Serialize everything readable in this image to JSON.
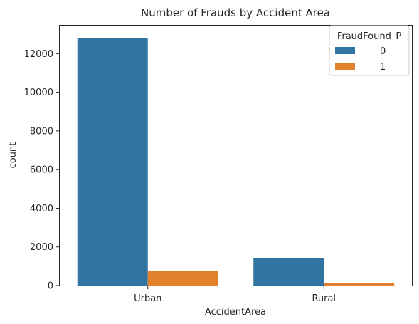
{
  "chart_data": {
    "type": "bar",
    "title": "Number of Frauds by Accident Area",
    "xlabel": "AccidentArea",
    "ylabel": "count",
    "categories": [
      "Urban",
      "Rural"
    ],
    "ylim": [
      0,
      13450
    ],
    "yticks": [
      0,
      2000,
      4000,
      6000,
      8000,
      10000,
      12000
    ],
    "ytick_labels": [
      "0",
      "2000",
      "4000",
      "6000",
      "8000",
      "10000",
      "12000"
    ],
    "grid": false,
    "legend": {
      "title": "FraudFound_P",
      "placement": "top-right"
    },
    "series": [
      {
        "name": "0",
        "color": "#3274a1",
        "values": [
          12797,
          1400
        ]
      },
      {
        "name": "1",
        "color": "#e1812c",
        "values": [
          754,
          120
        ]
      }
    ]
  }
}
